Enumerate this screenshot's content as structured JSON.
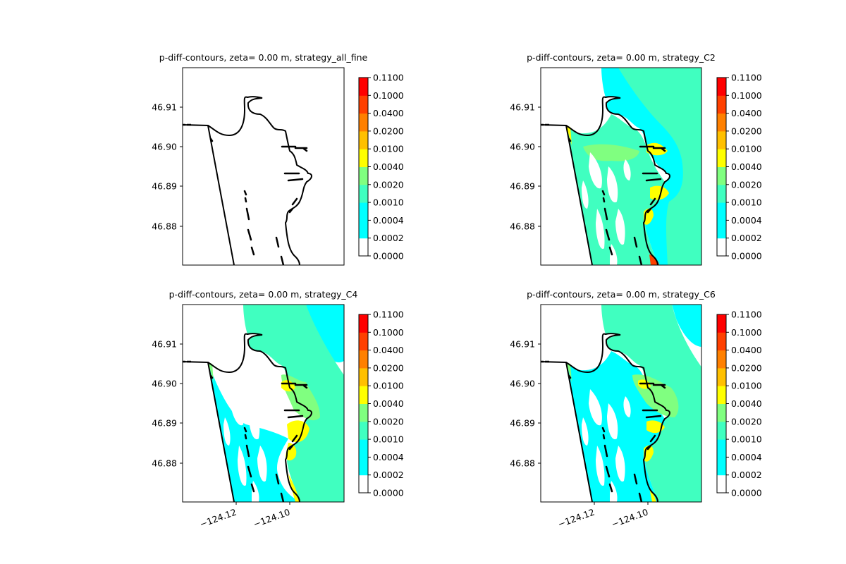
{
  "colors": {
    "levels": [
      "#ffffff",
      "#00ffff",
      "#40ffc0",
      "#80ff80",
      "#ffff00",
      "#ffc000",
      "#ff8000",
      "#ff4000",
      "#ff0000"
    ],
    "coast": "#000000"
  },
  "colorbar": {
    "ticks": [
      "0.0000",
      "0.0002",
      "0.0004",
      "0.0010",
      "0.0020",
      "0.0040",
      "0.0100",
      "0.0200",
      "0.0400",
      "0.1000",
      "0.1100"
    ]
  },
  "chart_data": [
    {
      "type": "heatmap",
      "title": "p-diff-contours, zeta= 0.00 m, strategy_all_fine",
      "ytick_labels": [
        "46.91",
        "46.90",
        "46.89",
        "46.88"
      ],
      "xtick_labels": [],
      "field": "none"
    },
    {
      "type": "heatmap",
      "title": "p-diff-contours, zeta= 0.00 m, strategy_C2",
      "ytick_labels": [
        "46.91",
        "46.90",
        "46.89",
        "46.88"
      ],
      "xtick_labels": [],
      "field": "c2"
    },
    {
      "type": "heatmap",
      "title": "p-diff-contours, zeta= 0.00 m, strategy_C4",
      "ytick_labels": [
        "46.91",
        "46.90",
        "46.89",
        "46.88"
      ],
      "xtick_labels": [
        "−124.12",
        "−124.10"
      ],
      "field": "c4"
    },
    {
      "type": "heatmap",
      "title": "p-diff-contours, zeta= 0.00 m, strategy_C6",
      "ytick_labels": [
        "46.91",
        "46.90",
        "46.89",
        "46.88"
      ],
      "xtick_labels": [
        "−124.12",
        "−124.10"
      ],
      "field": "c6"
    }
  ]
}
